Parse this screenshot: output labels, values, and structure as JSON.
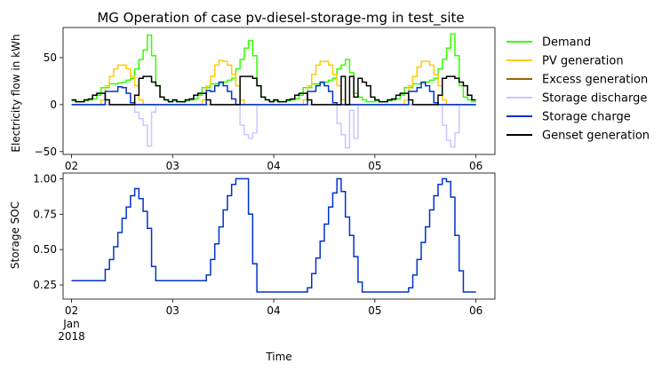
{
  "chart_data": [
    {
      "type": "line",
      "title": "MG Operation of case pv-diesel-storage-mg in test_site",
      "ylabel": "Electricity flow in kWh",
      "xlabel": "",
      "step": "post",
      "ylim": [
        -53,
        82
      ],
      "yticks": [
        -50,
        0,
        50
      ],
      "xticks": [
        0,
        24,
        48,
        72,
        96
      ],
      "xtick_labels": [
        "02",
        "03",
        "04",
        "05",
        "06"
      ],
      "xtick_sublabels": [
        "",
        "",
        "",
        "",
        ""
      ],
      "legend_position": "right",
      "series": [
        {
          "name": "Demand",
          "color": "#33ff00",
          "values": [
            4,
            3,
            3,
            4,
            5,
            6,
            10,
            18,
            18,
            22,
            22,
            23,
            24,
            26,
            28,
            38,
            48,
            58,
            74,
            52,
            20,
            8,
            5,
            3,
            4,
            3,
            3,
            4,
            5,
            6,
            10,
            18,
            18,
            22,
            22,
            23,
            24,
            26,
            28,
            38,
            48,
            60,
            68,
            52,
            20,
            8,
            5,
            3,
            4,
            3,
            3,
            4,
            5,
            6,
            10,
            18,
            18,
            22,
            22,
            23,
            24,
            26,
            28,
            38,
            42,
            48,
            34,
            12,
            8,
            5,
            3,
            3,
            4,
            3,
            3,
            4,
            5,
            6,
            10,
            18,
            18,
            22,
            22,
            23,
            24,
            26,
            28,
            38,
            48,
            60,
            75,
            52,
            20,
            8,
            5,
            3
          ]
        },
        {
          "name": "PV generation",
          "color": "#ffcc00",
          "values": [
            0,
            0,
            0,
            0,
            0,
            0,
            0,
            5,
            20,
            30,
            38,
            42,
            42,
            38,
            30,
            20,
            5,
            0,
            0,
            0,
            0,
            0,
            0,
            0,
            0,
            0,
            0,
            0,
            0,
            0,
            0,
            5,
            20,
            30,
            42,
            47,
            46,
            42,
            32,
            20,
            5,
            0,
            0,
            0,
            0,
            0,
            0,
            0,
            0,
            0,
            0,
            0,
            0,
            0,
            0,
            5,
            20,
            32,
            42,
            46,
            46,
            42,
            32,
            20,
            5,
            0,
            0,
            0,
            0,
            0,
            0,
            0,
            0,
            0,
            0,
            0,
            0,
            0,
            0,
            5,
            20,
            30,
            40,
            46,
            46,
            42,
            32,
            20,
            5,
            0,
            0,
            0,
            0,
            0,
            0,
            0
          ]
        },
        {
          "name": "Excess generation",
          "color": "#996600",
          "values": [
            0,
            0,
            0,
            0,
            0,
            0,
            0,
            0,
            0,
            0,
            0,
            0,
            0,
            0,
            0,
            0,
            0,
            0,
            0,
            0,
            0,
            0,
            0,
            0,
            0,
            0,
            0,
            0,
            0,
            0,
            0,
            0,
            0,
            0,
            0,
            0,
            0,
            0,
            0,
            0,
            0,
            0,
            0,
            0,
            0,
            0,
            0,
            0,
            0,
            0,
            0,
            0,
            0,
            0,
            0,
            0,
            0,
            0,
            0,
            0,
            0,
            0,
            0,
            0,
            0,
            0,
            0,
            0,
            0,
            0,
            0,
            0,
            0,
            0,
            0,
            0,
            0,
            0,
            0,
            0,
            0,
            0,
            0,
            0,
            0,
            0,
            0,
            0,
            0,
            0,
            0,
            0,
            0,
            0,
            0,
            0
          ]
        },
        {
          "name": "Storage discharge",
          "color": "#c8c8ff",
          "values": [
            0,
            0,
            0,
            0,
            0,
            0,
            0,
            0,
            0,
            0,
            0,
            0,
            0,
            0,
            0,
            -8,
            -15,
            -22,
            -44,
            -8,
            0,
            0,
            0,
            0,
            0,
            0,
            0,
            0,
            0,
            0,
            0,
            0,
            0,
            0,
            0,
            0,
            0,
            0,
            0,
            0,
            -22,
            -32,
            -36,
            -30,
            0,
            0,
            0,
            0,
            0,
            0,
            0,
            0,
            0,
            0,
            0,
            0,
            0,
            0,
            0,
            0,
            0,
            0,
            0,
            -20,
            -32,
            -46,
            -6,
            -36,
            0,
            0,
            0,
            0,
            0,
            0,
            0,
            0,
            0,
            0,
            0,
            0,
            0,
            0,
            0,
            0,
            0,
            0,
            0,
            0,
            -22,
            -38,
            -45,
            -30,
            0,
            0,
            0,
            0
          ]
        },
        {
          "name": "Storage charge",
          "color": "#0033cc",
          "values": [
            0,
            0,
            0,
            0,
            0,
            0,
            0,
            0,
            14,
            14,
            14,
            19,
            18,
            12,
            2,
            0,
            0,
            0,
            0,
            0,
            0,
            0,
            0,
            0,
            0,
            0,
            0,
            0,
            0,
            0,
            0,
            0,
            15,
            14,
            20,
            24,
            20,
            14,
            6,
            0,
            0,
            0,
            0,
            0,
            0,
            0,
            0,
            0,
            0,
            0,
            0,
            0,
            0,
            0,
            0,
            0,
            14,
            14,
            20,
            24,
            20,
            14,
            2,
            0,
            0,
            0,
            0,
            0,
            0,
            0,
            0,
            0,
            0,
            0,
            0,
            0,
            0,
            0,
            0,
            0,
            14,
            14,
            18,
            24,
            20,
            14,
            2,
            0,
            0,
            0,
            0,
            0,
            0,
            0,
            0,
            0
          ]
        },
        {
          "name": "Genset generation",
          "color": "#000000",
          "values": [
            5,
            3,
            3,
            5,
            6,
            10,
            12,
            12,
            5,
            0,
            0,
            0,
            0,
            0,
            0,
            10,
            28,
            30,
            30,
            24,
            20,
            8,
            5,
            3,
            5,
            3,
            3,
            5,
            6,
            10,
            12,
            12,
            5,
            0,
            0,
            0,
            0,
            0,
            0,
            0,
            30,
            30,
            30,
            28,
            20,
            8,
            5,
            3,
            5,
            3,
            3,
            5,
            6,
            10,
            12,
            12,
            5,
            0,
            0,
            0,
            0,
            0,
            0,
            0,
            30,
            0,
            30,
            8,
            28,
            24,
            20,
            8,
            5,
            3,
            3,
            5,
            6,
            10,
            12,
            12,
            5,
            0,
            0,
            0,
            0,
            0,
            0,
            10,
            28,
            30,
            30,
            28,
            24,
            20,
            10,
            5
          ]
        }
      ]
    },
    {
      "type": "line",
      "title": "",
      "ylabel": "Storage SOC",
      "xlabel": "Time",
      "step": "post",
      "ylim": [
        0.15,
        1.04
      ],
      "yticks": [
        0.25,
        0.5,
        0.75,
        1.0
      ],
      "ytick_labels": [
        "0.25",
        "0.50",
        "0.75",
        "1.00"
      ],
      "xticks": [
        0,
        24,
        48,
        72,
        96
      ],
      "xtick_labels": [
        "02",
        "03",
        "04",
        "05",
        "06"
      ],
      "xtick_sublabels": [
        "Jan\n2018",
        "",
        "",
        "",
        ""
      ],
      "series": [
        {
          "name": "",
          "color": "#0033cc",
          "values": [
            0.28,
            0.28,
            0.28,
            0.28,
            0.28,
            0.28,
            0.28,
            0.28,
            0.36,
            0.43,
            0.52,
            0.62,
            0.72,
            0.8,
            0.88,
            0.93,
            0.86,
            0.77,
            0.65,
            0.38,
            0.28,
            0.28,
            0.28,
            0.28,
            0.28,
            0.28,
            0.28,
            0.28,
            0.28,
            0.28,
            0.28,
            0.28,
            0.32,
            0.43,
            0.54,
            0.66,
            0.78,
            0.88,
            0.96,
            1.0,
            1.0,
            1.0,
            0.75,
            0.4,
            0.2,
            0.2,
            0.2,
            0.2,
            0.2,
            0.2,
            0.2,
            0.2,
            0.2,
            0.2,
            0.2,
            0.2,
            0.23,
            0.33,
            0.44,
            0.56,
            0.68,
            0.8,
            0.9,
            1.0,
            0.91,
            0.73,
            0.6,
            0.45,
            0.27,
            0.2,
            0.2,
            0.2,
            0.2,
            0.2,
            0.2,
            0.2,
            0.2,
            0.2,
            0.2,
            0.2,
            0.23,
            0.32,
            0.43,
            0.55,
            0.66,
            0.78,
            0.88,
            0.96,
            1.0,
            0.98,
            0.87,
            0.6,
            0.35,
            0.2,
            0.2,
            0.2
          ]
        }
      ]
    }
  ]
}
